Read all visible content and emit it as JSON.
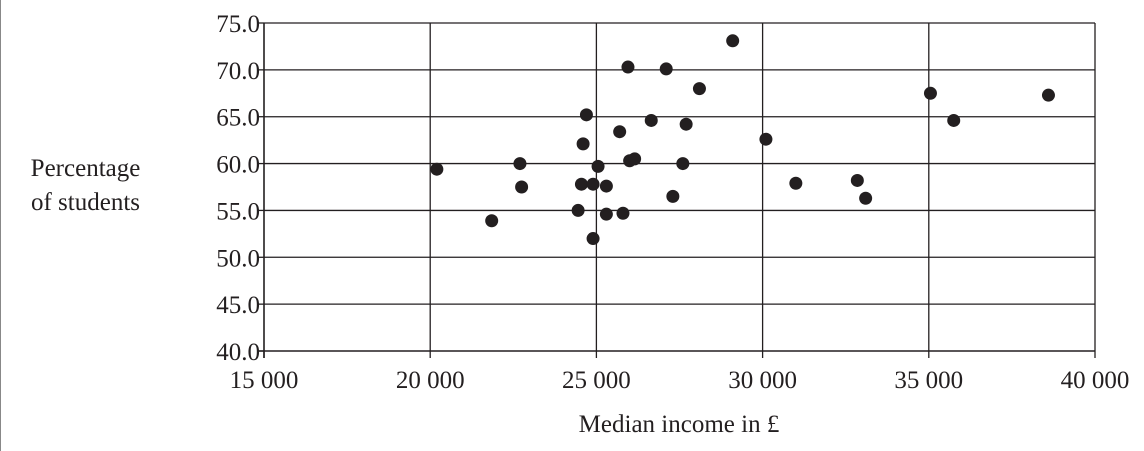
{
  "chart_data": {
    "type": "scatter",
    "title": "",
    "xlabel": "Median income in £",
    "ylabel_lines": [
      "Percentage",
      "of students"
    ],
    "xlim": [
      15000,
      40000
    ],
    "ylim": [
      40.0,
      75.0
    ],
    "xticks": [
      15000,
      20000,
      25000,
      30000,
      35000,
      40000
    ],
    "xtick_labels": [
      "15 000",
      "20 000",
      "25 000",
      "30 000",
      "35 000",
      "40 000"
    ],
    "yticks": [
      40.0,
      45.0,
      50.0,
      55.0,
      60.0,
      65.0,
      70.0,
      75.0
    ],
    "ytick_labels": [
      "40.0",
      "45.0",
      "50.0",
      "55.0",
      "60.0",
      "65.0",
      "70.0",
      "75.0"
    ],
    "grid": true,
    "point_color": "#231f20",
    "points": [
      {
        "x": 20200,
        "y": 59.4
      },
      {
        "x": 21850,
        "y": 53.9
      },
      {
        "x": 22700,
        "y": 60.0
      },
      {
        "x": 22750,
        "y": 57.5
      },
      {
        "x": 24450,
        "y": 55.0
      },
      {
        "x": 24600,
        "y": 62.1
      },
      {
        "x": 24550,
        "y": 57.8
      },
      {
        "x": 24700,
        "y": 65.2
      },
      {
        "x": 24900,
        "y": 57.8
      },
      {
        "x": 24900,
        "y": 52.0
      },
      {
        "x": 25050,
        "y": 59.7
      },
      {
        "x": 25300,
        "y": 57.6
      },
      {
        "x": 25300,
        "y": 54.6
      },
      {
        "x": 25700,
        "y": 63.4
      },
      {
        "x": 25800,
        "y": 54.7
      },
      {
        "x": 25950,
        "y": 70.3
      },
      {
        "x": 26000,
        "y": 60.3
      },
      {
        "x": 26150,
        "y": 60.5
      },
      {
        "x": 26650,
        "y": 64.6
      },
      {
        "x": 27100,
        "y": 70.1
      },
      {
        "x": 27300,
        "y": 56.5
      },
      {
        "x": 27600,
        "y": 60.0
      },
      {
        "x": 27700,
        "y": 64.2
      },
      {
        "x": 28100,
        "y": 68.0
      },
      {
        "x": 29100,
        "y": 73.1
      },
      {
        "x": 30100,
        "y": 62.6
      },
      {
        "x": 31000,
        "y": 57.9
      },
      {
        "x": 32850,
        "y": 58.2
      },
      {
        "x": 33100,
        "y": 56.3
      },
      {
        "x": 35050,
        "y": 67.5
      },
      {
        "x": 35750,
        "y": 64.6
      },
      {
        "x": 38600,
        "y": 67.3
      }
    ]
  }
}
